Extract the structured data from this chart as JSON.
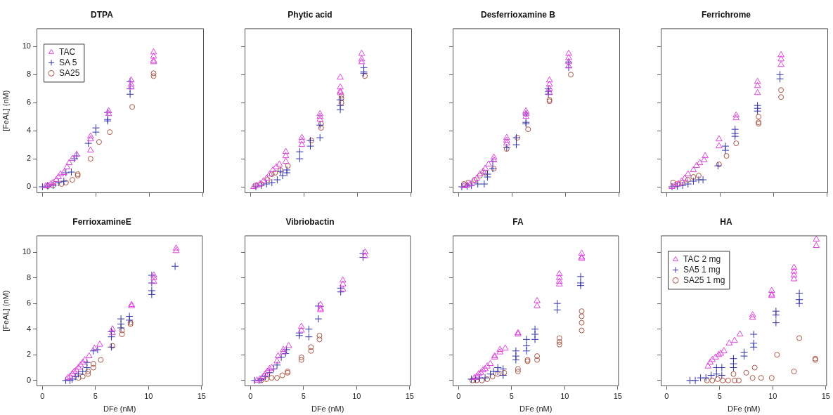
{
  "chart_data": [
    {
      "type": "scatter",
      "title": "DTPA",
      "ylabel": "[FeAL] (nM)",
      "xlim": [
        -0.55,
        15.1
      ],
      "ylim": [
        -0.45,
        11.3
      ],
      "xticks": [
        0,
        5,
        10,
        15
      ],
      "yticks": [
        0,
        2,
        4,
        6,
        8,
        10
      ],
      "tick_labels": "y",
      "legend": "top left",
      "series": [
        {
          "name": "TAC",
          "color": "#dd44dd",
          "marker": "triangle",
          "x": [
            0.3,
            0.5,
            0.8,
            1.0,
            1.3,
            1.5,
            1.7,
            2.0,
            2.3,
            2.5,
            2.8,
            3.2,
            4.5,
            4.5,
            4.5,
            6.2,
            6.2,
            8.3,
            8.3,
            8.3,
            10.4,
            10.4,
            10.4,
            10.4
          ],
          "values": [
            0.05,
            0.1,
            0.2,
            0.3,
            0.5,
            0.7,
            0.9,
            1.0,
            1.4,
            1.7,
            2.0,
            2.3,
            3.6,
            3.4,
            2.6,
            5.4,
            5.2,
            7.6,
            7.3,
            7.1,
            9.6,
            9.3,
            9.0,
            8.9
          ]
        },
        {
          "name": "SA 5",
          "color": "#3333aa",
          "marker": "cross",
          "x": [
            0.0,
            0.5,
            1.0,
            1.5,
            2.0,
            2.2,
            2.7,
            3.0,
            3.2,
            4.3,
            5.0,
            5.0,
            6.1,
            6.1,
            6.1,
            8.2,
            8.2,
            8.2
          ],
          "values": [
            0,
            0.05,
            0.1,
            0.3,
            0.4,
            1.0,
            1.05,
            2.0,
            2.2,
            3.1,
            4.2,
            3.9,
            5.3,
            4.8,
            4.7,
            7.5,
            7.0,
            6.6
          ]
        },
        {
          "name": "SA25",
          "color": "#aa5544",
          "marker": "circle",
          "x": [
            0.5,
            1.0,
            1.8,
            2.2,
            2.8,
            3.3,
            3.3,
            4.5,
            5.3,
            6.3,
            8.4,
            10.4,
            10.4
          ],
          "values": [
            0.05,
            0.1,
            0.2,
            0.3,
            0.5,
            0.8,
            0.9,
            2.0,
            3.2,
            3.9,
            5.7,
            8.1,
            7.9
          ]
        }
      ]
    },
    {
      "type": "scatter",
      "title": "Phytic acid",
      "xlim": [
        -0.55,
        15.1
      ],
      "ylim": [
        -0.45,
        11.3
      ],
      "xticks": [
        0,
        5,
        10,
        15
      ],
      "yticks": [
        0,
        2,
        4,
        6,
        8,
        10
      ],
      "tick_labels": false,
      "series": [
        {
          "color": "#dd44dd",
          "marker": "triangle",
          "x": [
            0.3,
            0.6,
            0.9,
            1.2,
            1.5,
            1.8,
            2.1,
            2.4,
            2.7,
            3.3,
            3.3,
            3.3,
            4.8,
            4.8,
            4.8,
            6.5,
            6.5,
            6.5,
            8.4,
            8.4,
            8.4,
            8.4,
            10.4,
            10.4,
            10.4
          ],
          "values": [
            0.0,
            0.1,
            0.2,
            0.4,
            0.6,
            0.9,
            1.2,
            1.4,
            1.6,
            1.8,
            2.2,
            2.5,
            3.5,
            3.3,
            3.0,
            5.2,
            5.0,
            4.8,
            7.8,
            7.1,
            6.8,
            6.7,
            9.5,
            9.1,
            8.9
          ]
        },
        {
          "color": "#3333aa",
          "marker": "cross",
          "x": [
            0.5,
            1.0,
            1.5,
            2.0,
            2.5,
            2.8,
            3.0,
            3.4,
            3.4,
            4.6,
            4.6,
            5.6,
            5.6,
            6.5,
            6.5,
            8.4,
            8.4,
            8.4,
            10.6,
            10.6,
            10.6
          ],
          "values": [
            0,
            0.1,
            0.2,
            0.3,
            0.5,
            1.1,
            0.8,
            1.0,
            1.2,
            2.5,
            2.0,
            3.3,
            2.9,
            4.4,
            3.5,
            6.2,
            5.8,
            5.5,
            8.5,
            8.2,
            8.1
          ]
        },
        {
          "color": "#aa5544",
          "marker": "circle",
          "x": [
            0.5,
            1.0,
            1.6,
            2.0,
            2.3,
            2.8,
            3.5,
            5.7,
            6.6,
            6.6,
            8.5,
            8.5,
            8.5,
            10.7
          ],
          "values": [
            0.1,
            0.2,
            0.5,
            0.9,
            1.0,
            1.2,
            1.5,
            3.3,
            4.2,
            4.5,
            6.5,
            6.3,
            6.0,
            7.9
          ]
        }
      ]
    },
    {
      "type": "scatter",
      "title": "Desferrioxamine B",
      "xlim": [
        -0.55,
        15.1
      ],
      "ylim": [
        -0.45,
        11.3
      ],
      "xticks": [
        0,
        5,
        10,
        15
      ],
      "yticks": [
        0,
        2,
        4,
        6,
        8,
        10
      ],
      "tick_labels": false,
      "series": [
        {
          "color": "#dd44dd",
          "marker": "triangle",
          "x": [
            0.5,
            0.8,
            1.1,
            1.4,
            1.7,
            2.0,
            2.3,
            2.5,
            2.8,
            3.3,
            3.3,
            4.5,
            4.5,
            4.5,
            6.3,
            6.3,
            6.3,
            8.5,
            8.5,
            8.5,
            8.5,
            10.3,
            10.3,
            10.3,
            10.3
          ],
          "values": [
            0.05,
            0.1,
            0.2,
            0.4,
            0.6,
            0.9,
            1.1,
            1.3,
            1.6,
            1.9,
            2.1,
            3.5,
            3.3,
            3.1,
            5.4,
            5.2,
            5.0,
            7.6,
            7.3,
            7.0,
            6.7,
            9.5,
            9.2,
            8.9,
            8.6
          ]
        },
        {
          "color": "#3333aa",
          "marker": "cross",
          "x": [
            0.3,
            0.8,
            1.2,
            1.8,
            2.4,
            2.7,
            2.7,
            3.2,
            3.2,
            4.5,
            5.4,
            5.4,
            6.3,
            6.3,
            6.3,
            8.4,
            8.4,
            8.4,
            10.3,
            10.3
          ],
          "values": [
            0,
            0.05,
            0.1,
            0.2,
            0.2,
            0.7,
            0.9,
            1.3,
            1.8,
            2.8,
            3.5,
            3.0,
            5.2,
            4.6,
            4.5,
            7.0,
            6.8,
            6.6,
            8.9,
            8.5
          ]
        },
        {
          "color": "#aa5544",
          "marker": "circle",
          "x": [
            0.5,
            0.9,
            1.5,
            2.0,
            2.5,
            3.3,
            4.5,
            5.5,
            6.5,
            8.5,
            8.5,
            10.5
          ],
          "values": [
            0.2,
            0.3,
            0.5,
            0.8,
            1.0,
            1.3,
            2.7,
            3.5,
            4.1,
            6.2,
            6.1,
            8.0
          ]
        }
      ]
    },
    {
      "type": "scatter",
      "title": "Ferrichrome",
      "xlim": [
        -0.55,
        15.1
      ],
      "ylim": [
        -0.45,
        11.3
      ],
      "xticks": [
        0,
        5,
        10,
        15
      ],
      "yticks": [
        0,
        2,
        4,
        6,
        8,
        10
      ],
      "tick_labels": false,
      "series": [
        {
          "color": "#dd44dd",
          "marker": "triangle",
          "x": [
            0.5,
            0.8,
            1.1,
            1.4,
            1.7,
            2.0,
            2.5,
            2.8,
            3.1,
            3.5,
            3.6,
            4.9,
            4.9,
            6.5,
            6.5,
            8.5,
            8.5,
            8.5,
            10.7,
            10.7,
            10.7
          ],
          "values": [
            0,
            0.1,
            0.2,
            0.4,
            0.6,
            0.9,
            1.2,
            1.5,
            1.7,
            1.9,
            2.2,
            3.4,
            2.9,
            5.1,
            4.9,
            7.5,
            7.2,
            6.7,
            9.4,
            9.1,
            8.7
          ]
        },
        {
          "color": "#3333aa",
          "marker": "cross",
          "x": [
            0.5,
            1.0,
            1.5,
            2.0,
            2.5,
            3.0,
            3.4,
            4.8,
            5.5,
            5.5,
            6.4,
            6.4,
            6.4,
            8.5,
            8.5,
            8.5,
            10.6,
            10.6
          ],
          "values": [
            0,
            0.05,
            0.1,
            0.2,
            0.4,
            0.5,
            0.5,
            1.5,
            2.9,
            2.6,
            4.1,
            3.8,
            3.6,
            5.8,
            5.6,
            5.4,
            8.0,
            7.7
          ]
        },
        {
          "color": "#aa5544",
          "marker": "circle",
          "x": [
            0.6,
            1.0,
            1.5,
            2.0,
            2.5,
            3.0,
            4.9,
            5.6,
            6.5,
            8.6,
            8.6,
            8.6,
            10.7,
            10.7
          ],
          "values": [
            0.3,
            0.2,
            0.3,
            0.5,
            0.7,
            0.8,
            1.6,
            2.2,
            3.1,
            5.0,
            4.6,
            4.5,
            6.9,
            6.4
          ]
        }
      ]
    },
    {
      "type": "scatter",
      "title": "FerrioxamineE",
      "xlabel": "DFe (nM)",
      "ylabel": "[FeAL] (nM)",
      "xlim": [
        -0.55,
        15.1
      ],
      "ylim": [
        -0.45,
        11.3
      ],
      "xticks": [
        0,
        5,
        10,
        15
      ],
      "yticks": [
        0,
        2,
        4,
        6,
        8,
        10
      ],
      "series": [
        {
          "color": "#dd44dd",
          "marker": "triangle",
          "x": [
            2.4,
            2.6,
            2.8,
            3.0,
            3.2,
            3.4,
            3.6,
            3.8,
            4.0,
            4.4,
            4.9,
            5.4,
            6.6,
            6.6,
            8.4,
            8.4,
            10.5,
            10.5,
            10.5,
            12.6,
            12.6
          ],
          "values": [
            0.2,
            0.3,
            0.5,
            0.7,
            0.8,
            1.0,
            1.2,
            1.4,
            1.6,
            1.9,
            2.5,
            2.8,
            4.0,
            3.7,
            5.9,
            5.8,
            8.2,
            8.0,
            7.7,
            10.3,
            10.1
          ]
        },
        {
          "color": "#3333aa",
          "marker": "cross",
          "x": [
            2.2,
            2.6,
            2.8,
            3.1,
            3.4,
            3.8,
            4.2,
            4.2,
            4.8,
            5.2,
            6.5,
            6.5,
            6.5,
            7.4,
            7.4,
            7.4,
            8.2,
            8.2,
            10.3,
            10.3,
            10.3,
            10.3,
            12.5
          ],
          "values": [
            0,
            0,
            0.1,
            0.3,
            0.5,
            0.7,
            1.4,
            1.0,
            2.3,
            2.4,
            3.8,
            3.4,
            2.6,
            4.8,
            4.4,
            4.1,
            5.0,
            4.7,
            8.2,
            7.6,
            7.0,
            6.7,
            8.9
          ]
        },
        {
          "color": "#aa5544",
          "marker": "circle",
          "x": [
            3.4,
            3.8,
            4.3,
            4.3,
            4.8,
            4.8,
            5.5,
            6.6,
            7.5,
            7.5,
            8.3,
            8.3
          ],
          "values": [
            0.2,
            0.3,
            0.5,
            0.7,
            1.0,
            1.3,
            1.6,
            2.7,
            3.9,
            3.6,
            4.5,
            4.4
          ]
        }
      ]
    },
    {
      "type": "scatter",
      "title": "Vibriobactin",
      "xlabel": "DFe (nM)",
      "xlim": [
        -0.55,
        15.1
      ],
      "ylim": [
        -0.45,
        11.3
      ],
      "xticks": [
        0,
        5,
        10,
        15
      ],
      "yticks": [
        0,
        2,
        4,
        6,
        8,
        10
      ],
      "tick_labels": "x",
      "series": [
        {
          "color": "#dd44dd",
          "marker": "triangle",
          "x": [
            0.6,
            0.9,
            1.2,
            1.4,
            1.6,
            1.8,
            2.0,
            2.5,
            2.6,
            3.1,
            3.1,
            3.6,
            4.8,
            4.8,
            6.6,
            6.6,
            6.6,
            8.7,
            8.7,
            8.7,
            10.8,
            10.8
          ],
          "values": [
            0,
            0.1,
            0.3,
            0.5,
            0.7,
            0.9,
            1.0,
            1.5,
            1.9,
            2.2,
            2.4,
            2.7,
            4.2,
            3.9,
            5.9,
            5.6,
            5.5,
            7.8,
            7.5,
            7.1,
            10.0,
            9.7
          ]
        },
        {
          "color": "#3333aa",
          "marker": "cross",
          "x": [
            0.4,
            0.8,
            1.0,
            1.4,
            1.8,
            2.2,
            2.5,
            2.9,
            3.3,
            3.4,
            4.6,
            4.6,
            5.5,
            5.5,
            6.4,
            6.4,
            8.5,
            8.5,
            10.6,
            10.6
          ],
          "values": [
            0,
            0,
            0.1,
            0.3,
            0.6,
            0.9,
            1.2,
            1.8,
            2.1,
            2.4,
            3.7,
            3.5,
            4.0,
            3.4,
            5.8,
            4.8,
            7.2,
            6.9,
            9.9,
            9.6
          ]
        },
        {
          "color": "#aa5544",
          "marker": "circle",
          "x": [
            1.0,
            1.5,
            2.0,
            2.5,
            3.0,
            3.5,
            3.5,
            4.8,
            4.8,
            5.7,
            5.7,
            6.5,
            6.5
          ],
          "values": [
            0,
            0.1,
            0.2,
            0.2,
            0.4,
            0.6,
            0.7,
            1.8,
            1.6,
            2.6,
            2.3,
            3.5,
            3.2
          ]
        }
      ]
    },
    {
      "type": "scatter",
      "title": "FA",
      "xlabel": "DFe (nM)",
      "xlim": [
        -0.55,
        15.1
      ],
      "ylim": [
        -0.45,
        11.3
      ],
      "xticks": [
        0,
        5,
        10,
        15
      ],
      "yticks": [
        0,
        2,
        4,
        6,
        8,
        10
      ],
      "tick_labels": "x",
      "series": [
        {
          "color": "#dd44dd",
          "marker": "triangle",
          "x": [
            1.5,
            1.7,
            1.9,
            2.1,
            2.3,
            2.5,
            2.7,
            3.0,
            3.4,
            3.4,
            3.9,
            3.9,
            4.4,
            5.6,
            5.6,
            7.4,
            7.4,
            9.5,
            9.5,
            9.5,
            9.5,
            11.6,
            11.6,
            11.6
          ],
          "values": [
            0.2,
            0.3,
            0.5,
            0.6,
            0.8,
            0.9,
            1.1,
            1.3,
            1.8,
            1.9,
            2.2,
            2.4,
            2.5,
            3.7,
            3.6,
            6.2,
            5.8,
            8.3,
            8.0,
            7.7,
            7.5,
            9.9,
            9.6,
            9.5
          ]
        },
        {
          "color": "#3333aa",
          "marker": "cross",
          "x": [
            1.2,
            1.6,
            2.0,
            2.5,
            3.0,
            3.3,
            3.7,
            3.7,
            4.2,
            4.2,
            5.4,
            5.4,
            5.4,
            6.4,
            6.4,
            6.4,
            7.2,
            7.2,
            7.2,
            9.3,
            9.3,
            11.5,
            11.5,
            11.5
          ],
          "values": [
            0.1,
            0.1,
            0.2,
            0.2,
            0.5,
            0.7,
            1.0,
            0.7,
            0.9,
            0.4,
            2.3,
            1.9,
            1.6,
            3.2,
            2.7,
            2.3,
            4.0,
            3.6,
            3.2,
            6.0,
            5.5,
            8.1,
            7.6,
            7.4
          ]
        },
        {
          "color": "#aa5544",
          "marker": "circle",
          "x": [
            1.3,
            1.7,
            2.2,
            2.7,
            3.2,
            3.7,
            4.3,
            5.6,
            5.6,
            6.5,
            6.5,
            7.4,
            7.4,
            9.5,
            9.5,
            9.5,
            11.6,
            11.6,
            11.6,
            11.6
          ],
          "values": [
            0,
            0,
            0,
            0.1,
            0.3,
            0.5,
            0.6,
            0.9,
            0.7,
            1.6,
            1.5,
            1.9,
            1.6,
            3.3,
            3.0,
            2.8,
            5.4,
            5.0,
            4.5,
            3.9
          ]
        }
      ]
    },
    {
      "type": "scatter",
      "title": "HA",
      "xlabel": "DFe (nM)",
      "xlim": [
        -0.55,
        15.1
      ],
      "ylim": [
        -0.45,
        11.3
      ],
      "xticks": [
        0,
        5,
        10,
        15
      ],
      "yticks": [
        0,
        2,
        4,
        6,
        8,
        10
      ],
      "tick_labels": "x",
      "legend": "top left",
      "series": [
        {
          "name": "TAC 2 mg",
          "color": "#dd44dd",
          "marker": "triangle",
          "x": [
            3.9,
            4.1,
            4.3,
            4.6,
            4.9,
            5.1,
            5.4,
            5.9,
            6.4,
            6.9,
            8.1,
            8.1,
            9.9,
            9.9,
            9.9,
            12.0,
            12.0,
            12.0,
            12.0,
            14.1,
            14.1
          ],
          "values": [
            1.1,
            1.4,
            1.6,
            1.8,
            2.0,
            2.1,
            2.3,
            2.9,
            3.1,
            3.6,
            5.1,
            4.9,
            7.0,
            6.7,
            6.6,
            8.8,
            8.5,
            8.2,
            7.9,
            11.0,
            10.5
          ]
        },
        {
          "name": "SA5 1 mg",
          "color": "#3333aa",
          "marker": "cross",
          "x": [
            2.2,
            2.7,
            3.2,
            3.7,
            4.2,
            4.7,
            4.7,
            5.2,
            5.2,
            6.3,
            6.3,
            6.3,
            7.3,
            7.3,
            8.2,
            8.2,
            8.2,
            10.3,
            10.3,
            10.3,
            12.5,
            12.5,
            12.5
          ],
          "values": [
            0,
            0,
            0.2,
            0.2,
            0.4,
            1.0,
            0.5,
            1.0,
            0.4,
            1.7,
            1.3,
            1.0,
            2.2,
            1.9,
            3.6,
            2.9,
            2.6,
            5.4,
            5.1,
            4.5,
            6.8,
            6.3,
            6.0
          ]
        },
        {
          "name": "SA25 1 mg",
          "color": "#aa5544",
          "marker": "circle",
          "x": [
            3.8,
            4.3,
            4.8,
            5.3,
            5.8,
            6.3,
            6.4,
            6.8,
            7.5,
            8.1,
            8.3,
            8.9,
            9.9,
            10.4,
            12.0,
            12.5,
            14.0,
            14.0
          ],
          "values": [
            0,
            0,
            0.1,
            0,
            0,
            0.5,
            0,
            0,
            0.6,
            0.2,
            1.0,
            0.2,
            0.2,
            2.0,
            0.7,
            3.3,
            1.7,
            1.6
          ]
        }
      ]
    }
  ]
}
